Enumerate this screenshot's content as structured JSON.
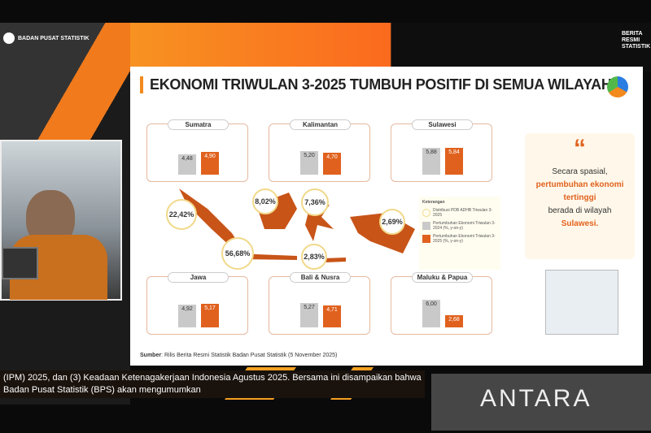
{
  "header": {
    "org": "BADAN PUSAT STATISTIK",
    "brand": "BERITA RESMI STATISTIK"
  },
  "slide": {
    "title": "EKONOMI TRIWULAN 3-2025  TUMBUH POSITIF DI SEMUA WILAYAH",
    "quote": {
      "before": "Secara spasial,",
      "highlight": "pertumbuhan ekonomi tertinggi",
      "after": "berada di wilayah",
      "region": "Sulawesi."
    },
    "source_label": "Sumber",
    "source": ": Rilis Berita Resmi Statistik Badan Pusat Statistik (5 November 2025)",
    "legend": {
      "title": "Keterangan",
      "items": [
        "Distribusi PDB ADHB Triwulan 3-2025",
        "Pertumbuhan Ekonomi Triwulan 3-2024 (%, y-on-y)",
        "Pertumbuhan Ekonomi Triwulan 3-2025 (%, y-on-y)"
      ]
    },
    "colors": {
      "y2024": "#c9c9c9",
      "y2025": "#e0611d"
    }
  },
  "chart_data": {
    "type": "bar",
    "categories": [
      "Sumatra",
      "Kalimantan",
      "Sulawesi",
      "Jawa",
      "Bali & Nusra",
      "Maluku & Papua"
    ],
    "series": [
      {
        "name": "Pertumbuhan Ekonomi Triwulan 3-2024 (%, y-on-y)",
        "values": [
          "4,48",
          "5,20",
          "5,88",
          "4,92",
          "5,27",
          "6,00"
        ]
      },
      {
        "name": "Pertumbuhan Ekonomi Triwulan 3-2025 (%, y-on-y)",
        "values": [
          "4,90",
          "4,70",
          "5,84",
          "5,17",
          "4,71",
          "2,68"
        ]
      }
    ],
    "distribution": {
      "Sumatra": "22,42%",
      "Kalimantan": "8,02%",
      "Sulawesi": "7,36%",
      "Maluku & Papua": "2,69%",
      "Jawa": "56,68%",
      "Bali & Nusra": "2,83%"
    }
  },
  "ticker": "(IPM) 2025, dan (3) Keadaan Ketenagakerjaan Indonesia Agustus 2025.      Bersama ini disampaikan bahwa Badan Pusat Statistik (BPS) akan mengumumkan",
  "watermark": "ANTARA"
}
